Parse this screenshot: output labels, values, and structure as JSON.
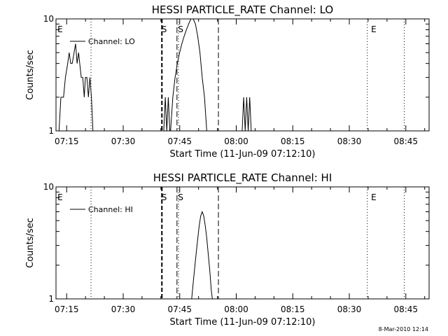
{
  "footer_timestamp": "8-Mar-2010 12:14",
  "chart_data": [
    {
      "type": "line",
      "title": "HESSI PARTICLE_RATE Channel: LO",
      "xlabel": "Start Time (11-Jun-09 07:12:10)",
      "ylabel": "Counts/sec",
      "y_scale": "log",
      "ylim": [
        1,
        10
      ],
      "xlim_minutes": [
        0,
        99
      ],
      "x_ticks": [
        {
          "label": "07:15",
          "min": 2.83
        },
        {
          "label": "07:30",
          "min": 17.83
        },
        {
          "label": "07:45",
          "min": 32.83
        },
        {
          "label": "08:00",
          "min": 47.83
        },
        {
          "label": "08:15",
          "min": 62.83
        },
        {
          "label": "08:30",
          "min": 77.83
        },
        {
          "label": "08:45",
          "min": 92.83
        }
      ],
      "y_ticks": [
        {
          "label": "1",
          "value": 1
        },
        {
          "label": "10",
          "value": 10
        }
      ],
      "legend": {
        "label": "Channel: LO",
        "placement": "top-left"
      },
      "series": [
        {
          "name": "Channel: LO",
          "points": [
            [
              0.8,
              1
            ],
            [
              1.3,
              2
            ],
            [
              2.0,
              2
            ],
            [
              2.5,
              3
            ],
            [
              3.1,
              4
            ],
            [
              3.5,
              5
            ],
            [
              3.9,
              4
            ],
            [
              4.3,
              4
            ],
            [
              4.8,
              5
            ],
            [
              5.2,
              6
            ],
            [
              5.6,
              4
            ],
            [
              6.0,
              5
            ],
            [
              6.3,
              4
            ],
            [
              6.7,
              3
            ],
            [
              7.1,
              3
            ],
            [
              7.5,
              2
            ],
            [
              7.8,
              3
            ],
            [
              8.2,
              3
            ],
            [
              8.6,
              2
            ],
            [
              9.0,
              3
            ],
            [
              9.4,
              2
            ],
            [
              9.8,
              1
            ],
            [
              28.6,
              1
            ],
            [
              29.0,
              2
            ],
            [
              29.4,
              1
            ],
            [
              29.8,
              2
            ],
            [
              30.2,
              1
            ],
            [
              30.4,
              1
            ],
            [
              31.0,
              2
            ],
            [
              31.6,
              3
            ],
            [
              32.2,
              4
            ],
            [
              32.8,
              5
            ],
            [
              33.4,
              6
            ],
            [
              34.0,
              7
            ],
            [
              34.6,
              8
            ],
            [
              35.2,
              9
            ],
            [
              35.8,
              10
            ],
            [
              36.4,
              10
            ],
            [
              37.0,
              9
            ],
            [
              37.6,
              7
            ],
            [
              38.2,
              5
            ],
            [
              38.8,
              3
            ],
            [
              39.4,
              2
            ],
            [
              40.0,
              1
            ],
            [
              49.4,
              1
            ],
            [
              49.8,
              2
            ],
            [
              50.2,
              1
            ],
            [
              50.6,
              2
            ],
            [
              51.0,
              1
            ],
            [
              51.4,
              2
            ],
            [
              51.8,
              1
            ]
          ]
        }
      ],
      "markers": [
        {
          "label": "E",
          "min": 0.4
        },
        {
          "label": "S",
          "min": 28.0
        },
        {
          "label": "S",
          "min": 32.4
        }
      ],
      "markers_right": [
        {
          "label": "E",
          "min": 83.6
        }
      ],
      "vlines": [
        {
          "min": 9.3,
          "style": "dotted"
        },
        {
          "min": 28.1,
          "style": "dashed-bold"
        },
        {
          "min": 32.1,
          "style": "dashed"
        },
        {
          "min": 32.5,
          "style": "dotted"
        },
        {
          "min": 43.1,
          "style": "dashed"
        },
        {
          "min": 82.6,
          "style": "dotted"
        },
        {
          "min": 92.4,
          "style": "dotted"
        }
      ]
    },
    {
      "type": "line",
      "title": "HESSI PARTICLE_RATE Channel: HI",
      "xlabel": "Start Time (11-Jun-09 07:12:10)",
      "ylabel": "Counts/sec",
      "y_scale": "log",
      "ylim": [
        1,
        10
      ],
      "xlim_minutes": [
        0,
        99
      ],
      "x_ticks": [
        {
          "label": "07:15",
          "min": 2.83
        },
        {
          "label": "07:30",
          "min": 17.83
        },
        {
          "label": "07:45",
          "min": 32.83
        },
        {
          "label": "08:00",
          "min": 47.83
        },
        {
          "label": "08:15",
          "min": 62.83
        },
        {
          "label": "08:30",
          "min": 77.83
        },
        {
          "label": "08:45",
          "min": 92.83
        }
      ],
      "y_ticks": [
        {
          "label": "1",
          "value": 1
        },
        {
          "label": "10",
          "value": 10
        }
      ],
      "legend": {
        "label": "Channel: HI",
        "placement": "top-left"
      },
      "series": [
        {
          "name": "Channel: HI",
          "points": [
            [
              36.0,
              1
            ],
            [
              36.5,
              1.5
            ],
            [
              37.0,
              2.2
            ],
            [
              37.5,
              3.2
            ],
            [
              38.0,
              4.5
            ],
            [
              38.4,
              5.5
            ],
            [
              38.8,
              6
            ],
            [
              39.2,
              5.5
            ],
            [
              39.6,
              4.5
            ],
            [
              40.0,
              3.5
            ],
            [
              40.4,
              2.5
            ],
            [
              40.8,
              1.8
            ],
            [
              41.2,
              1.2
            ],
            [
              41.5,
              1
            ]
          ]
        }
      ],
      "markers": [
        {
          "label": "E",
          "min": 0.4
        },
        {
          "label": "S",
          "min": 28.0
        },
        {
          "label": "S",
          "min": 32.4
        }
      ],
      "markers_right": [
        {
          "label": "E",
          "min": 83.6
        }
      ],
      "vlines": [
        {
          "min": 9.3,
          "style": "dotted"
        },
        {
          "min": 28.1,
          "style": "dashed-bold"
        },
        {
          "min": 32.1,
          "style": "dashed"
        },
        {
          "min": 32.5,
          "style": "dotted"
        },
        {
          "min": 43.1,
          "style": "dashed"
        },
        {
          "min": 82.6,
          "style": "dotted"
        },
        {
          "min": 92.4,
          "style": "dotted"
        }
      ]
    }
  ]
}
